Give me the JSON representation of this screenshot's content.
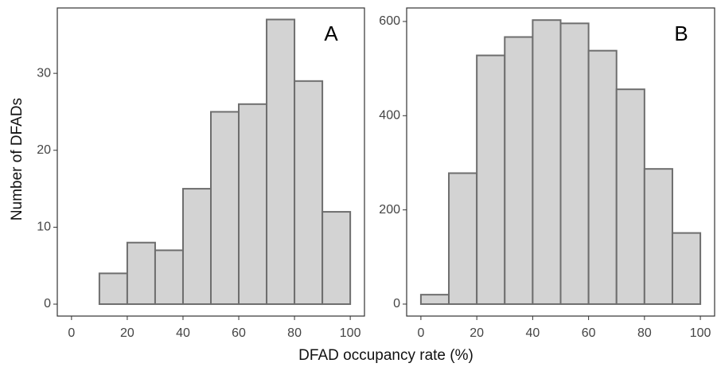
{
  "chart_data": [
    {
      "type": "histogram",
      "label": "A",
      "y_label": "Number of DFADs",
      "x_label": "DFAD occupancy rate (%)",
      "bins": [
        0,
        10,
        20,
        30,
        40,
        50,
        60,
        70,
        80,
        90,
        100
      ],
      "values": [
        0,
        4,
        8,
        7,
        15,
        25,
        26,
        37,
        29,
        12
      ],
      "color": "#d3d3d3",
      "edgecolor": "#6e6e6e",
      "xlim": [
        -5.1,
        105.1
      ],
      "ylim": [
        -1.55,
        38.5
      ],
      "xticks": [
        0,
        20,
        40,
        60,
        80,
        100
      ],
      "yticks": [
        0,
        10,
        20,
        30
      ]
    },
    {
      "type": "histogram",
      "label": "B",
      "bins": [
        0,
        10,
        20,
        30,
        40,
        50,
        60,
        70,
        80,
        90,
        100
      ],
      "values": [
        20,
        278,
        528,
        567,
        603,
        596,
        538,
        456,
        287,
        151
      ],
      "color": "#d3d3d3",
      "edgecolor": "#6e6e6e",
      "xlim": [
        -5.1,
        105.1
      ],
      "ylim": [
        -25.4,
        628.7
      ],
      "xticks": [
        0,
        20,
        40,
        60,
        80,
        100
      ],
      "yticks": [
        0,
        200,
        400,
        600
      ]
    }
  ]
}
